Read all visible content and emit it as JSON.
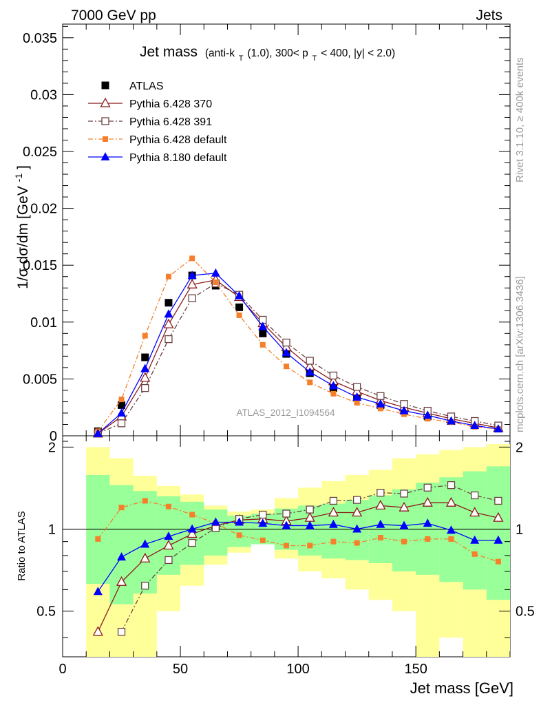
{
  "header": {
    "left": "7000 GeV pp",
    "right": "Jets"
  },
  "side_labels": {
    "rivet": "Rivet 3.1.10, ≥ 400k events",
    "mcplots": "mcplots.cern.ch [arXiv:1306.3436]"
  },
  "watermark": "ATLAS_2012_I1094564",
  "chart_data": [
    {
      "type": "scatter",
      "panel": "main",
      "title": "Jet mass",
      "subtitle": "(anti-k_T(1.0), 300< p_T < 400, |y| < 2.0)",
      "title_parts": {
        "main": "Jet mass",
        "a": "(anti-k",
        "a_sub": "T",
        "b": "(1.0), 300< p",
        "b_sub": "T",
        "c": " < 400, |y| < 2.0)"
      },
      "ylabel": "1/σ dσ/dm [GeV⁻¹]",
      "ylabel_text": "1/σ dσ/dm [GeV",
      "ylabel_sup": "-1",
      "ylabel_close": "]",
      "xlim": [
        0,
        190
      ],
      "ylim": [
        0,
        0.0362
      ],
      "yticks": [
        0,
        0.005,
        0.01,
        0.015,
        0.02,
        0.025,
        0.03,
        0.035
      ],
      "ytick_labels": [
        "0",
        "0.005",
        "0.01",
        "0.015",
        "0.02",
        "0.025",
        "0.03",
        "0.035"
      ],
      "x": [
        15,
        25,
        35,
        45,
        55,
        65,
        75,
        85,
        95,
        105,
        115,
        125,
        135,
        145,
        155,
        165,
        175,
        185
      ],
      "legend_position": "top-left",
      "series": [
        {
          "name": "ATLAS",
          "color": "#000000",
          "marker": "square-filled",
          "line": "none",
          "values": [
            0.0004,
            0.0027,
            0.0069,
            0.0117,
            0.0141,
            0.0132,
            0.0113,
            0.009,
            0.0072,
            0.0055,
            0.0042,
            0.0034,
            0.0027,
            0.0022,
            0.0017,
            0.0013,
            0.001,
            0.0007
          ]
        },
        {
          "name": "Pythia 6.428 370",
          "color": "#8b1a1a",
          "marker": "triangle-open",
          "line": "solid",
          "values": [
            0.0002,
            0.0017,
            0.0051,
            0.0098,
            0.0133,
            0.0137,
            0.0122,
            0.0099,
            0.0078,
            0.0061,
            0.0048,
            0.0039,
            0.0031,
            0.0025,
            0.002,
            0.0015,
            0.0011,
            0.0007
          ]
        },
        {
          "name": "Pythia 6.428 391",
          "color": "#6b4242",
          "marker": "square-open",
          "line": "dashdot",
          "values": [
            0.0002,
            0.0011,
            0.0042,
            0.0085,
            0.0121,
            0.0134,
            0.0124,
            0.0102,
            0.0082,
            0.0066,
            0.0053,
            0.0043,
            0.0035,
            0.0028,
            0.0022,
            0.0017,
            0.0013,
            0.0009
          ]
        },
        {
          "name": "Pythia 6.428 default",
          "color": "#f57f2a",
          "marker": "square-filled-small",
          "line": "dashdot",
          "values": [
            0.0004,
            0.0032,
            0.0088,
            0.014,
            0.0156,
            0.0135,
            0.0106,
            0.008,
            0.0061,
            0.0047,
            0.0037,
            0.0029,
            0.0024,
            0.0019,
            0.0015,
            0.0012,
            0.0008,
            0.0006
          ]
        },
        {
          "name": "Pythia 8.180 default",
          "color": "#0000ff",
          "marker": "triangle-filled",
          "line": "solid",
          "values": [
            0.0002,
            0.002,
            0.0059,
            0.0107,
            0.0141,
            0.0143,
            0.0123,
            0.0096,
            0.0073,
            0.0056,
            0.0044,
            0.0034,
            0.0028,
            0.0022,
            0.0018,
            0.0013,
            0.0009,
            0.0006
          ]
        }
      ]
    },
    {
      "type": "scatter",
      "panel": "ratio",
      "ylabel": "Ratio to ATLAS",
      "xlabel": "Jet mass [GeV]",
      "xlim": [
        0,
        190
      ],
      "ylim": [
        0.34,
        2.2
      ],
      "yticks": [
        0.5,
        1,
        2
      ],
      "ytick_labels": [
        "0.5",
        "1",
        "2"
      ],
      "xticks": [
        0,
        50,
        100,
        150
      ],
      "xtick_labels": [
        "0",
        "50",
        "100",
        "150"
      ],
      "reference_line": 1,
      "bin_edges": [
        10,
        20,
        30,
        40,
        50,
        60,
        70,
        80,
        90,
        100,
        110,
        120,
        130,
        140,
        150,
        160,
        170,
        180,
        190
      ],
      "band_green": {
        "color": "#99ff99",
        "lower": [
          0.63,
          0.53,
          0.58,
          0.68,
          0.74,
          0.8,
          0.86,
          0.88,
          0.84,
          0.8,
          0.78,
          0.77,
          0.75,
          0.7,
          0.68,
          0.64,
          0.6,
          0.55
        ],
        "upper": [
          1.58,
          1.45,
          1.38,
          1.32,
          1.26,
          1.18,
          1.12,
          1.14,
          1.19,
          1.22,
          1.24,
          1.28,
          1.33,
          1.4,
          1.48,
          1.55,
          1.63,
          1.7
        ]
      },
      "band_yellow": {
        "color": "#ffff99",
        "lower": [
          0.34,
          0.34,
          0.34,
          0.5,
          0.62,
          0.74,
          0.82,
          0.9,
          0.78,
          0.7,
          0.66,
          0.6,
          0.55,
          0.5,
          0.34,
          0.4,
          0.34,
          0.34
        ],
        "upper": [
          2.0,
          1.82,
          1.57,
          1.44,
          1.34,
          1.22,
          1.16,
          1.18,
          1.3,
          1.42,
          1.5,
          1.58,
          1.65,
          1.82,
          1.88,
          1.95,
          2.0,
          2.05
        ]
      },
      "x": [
        15,
        25,
        35,
        45,
        55,
        65,
        75,
        85,
        95,
        105,
        115,
        125,
        135,
        145,
        155,
        165,
        175,
        185
      ],
      "series": [
        {
          "name": "Pythia 6.428 370",
          "color": "#8b1a1a",
          "marker": "triangle-open",
          "line": "solid",
          "values": [
            0.42,
            0.64,
            0.78,
            0.87,
            0.96,
            1.03,
            1.08,
            1.09,
            1.07,
            1.1,
            1.15,
            1.15,
            1.22,
            1.2,
            1.25,
            1.25,
            1.15,
            1.1
          ]
        },
        {
          "name": "Pythia 6.428 391",
          "color": "#6b4242",
          "marker": "square-open",
          "line": "dashdot",
          "values": [
            null,
            0.42,
            0.62,
            0.77,
            0.89,
            1.01,
            1.09,
            1.13,
            1.14,
            1.18,
            1.27,
            1.28,
            1.36,
            1.35,
            1.42,
            1.45,
            1.33,
            1.27
          ]
        },
        {
          "name": "Pythia 6.428 default",
          "color": "#f57f2a",
          "marker": "square-filled-small",
          "line": "dashdot",
          "values": [
            0.92,
            1.2,
            1.27,
            1.21,
            1.13,
            1.05,
            0.95,
            0.91,
            0.87,
            0.87,
            0.9,
            0.89,
            0.93,
            0.9,
            0.92,
            0.92,
            0.81,
            0.76
          ]
        },
        {
          "name": "Pythia 8.180 default",
          "color": "#0000ff",
          "marker": "triangle-filled",
          "line": "solid",
          "values": [
            0.59,
            0.79,
            0.88,
            0.94,
            1.0,
            1.06,
            1.06,
            1.05,
            1.03,
            1.03,
            1.04,
            1.0,
            1.04,
            1.03,
            1.05,
            0.99,
            0.91,
            0.91
          ]
        }
      ]
    }
  ]
}
